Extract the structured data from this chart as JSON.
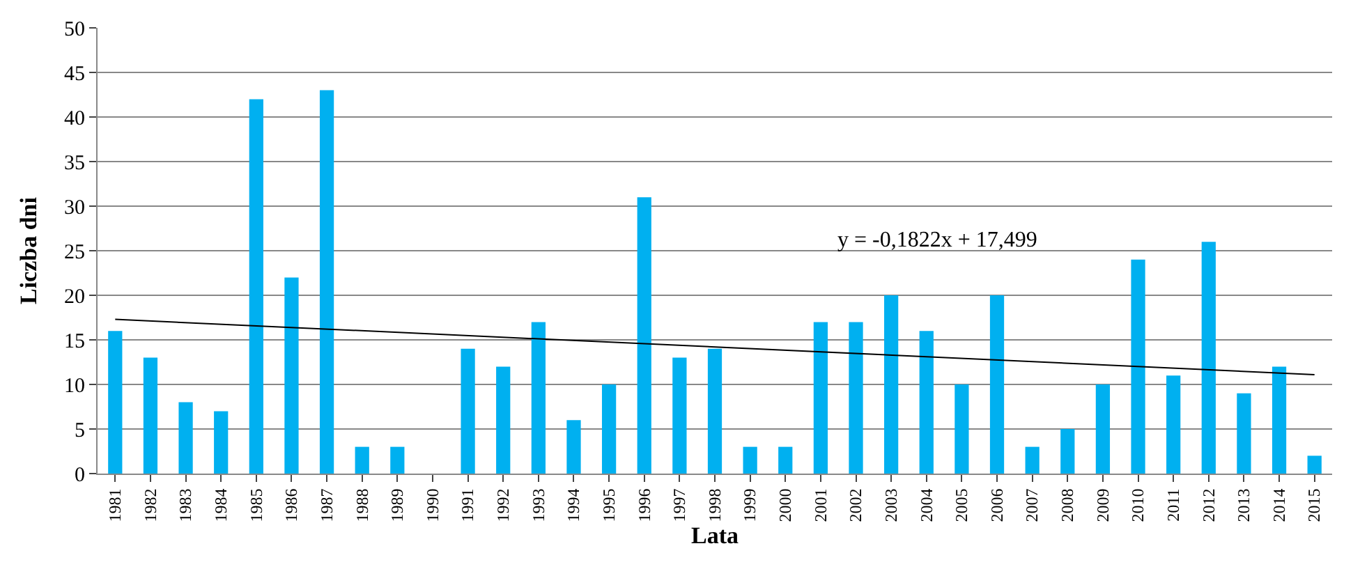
{
  "chart_data": {
    "type": "bar",
    "xlabel": "Lata",
    "ylabel": "Liczba dni",
    "categories": [
      "1981",
      "1982",
      "1983",
      "1984",
      "1985",
      "1986",
      "1987",
      "1988",
      "1989",
      "1990",
      "1991",
      "1992",
      "1993",
      "1994",
      "1995",
      "1996",
      "1997",
      "1998",
      "1999",
      "2000",
      "2001",
      "2002",
      "2003",
      "2004",
      "2005",
      "2006",
      "2007",
      "2008",
      "2009",
      "2010",
      "2011",
      "2012",
      "2013",
      "2014",
      "2015"
    ],
    "series": [
      {
        "color": "#00b0f0",
        "values": [
          16,
          13,
          8,
          7,
          42,
          22,
          43,
          3,
          3,
          0,
          14,
          12,
          17,
          6,
          10,
          31,
          13,
          14,
          3,
          3,
          17,
          17,
          20,
          16,
          10,
          20,
          3,
          5,
          10,
          24,
          11,
          26,
          9,
          12,
          2
        ]
      },
      {
        "type": "line",
        "color": "#000000",
        "values": [
          17.3,
          null,
          null,
          null,
          null,
          null,
          null,
          null,
          null,
          null,
          null,
          null,
          null,
          null,
          null,
          null,
          null,
          null,
          null,
          null,
          null,
          null,
          null,
          null,
          null,
          null,
          null,
          null,
          null,
          null,
          null,
          null,
          null,
          null,
          11.1
        ]
      }
    ],
    "annotations": [
      "y = -0,1822x + 17,499"
    ],
    "ylim": [
      0,
      50
    ],
    "yticks": [
      0,
      5,
      10,
      15,
      20,
      25,
      30,
      35,
      40,
      45,
      50
    ],
    "grid": "y"
  }
}
